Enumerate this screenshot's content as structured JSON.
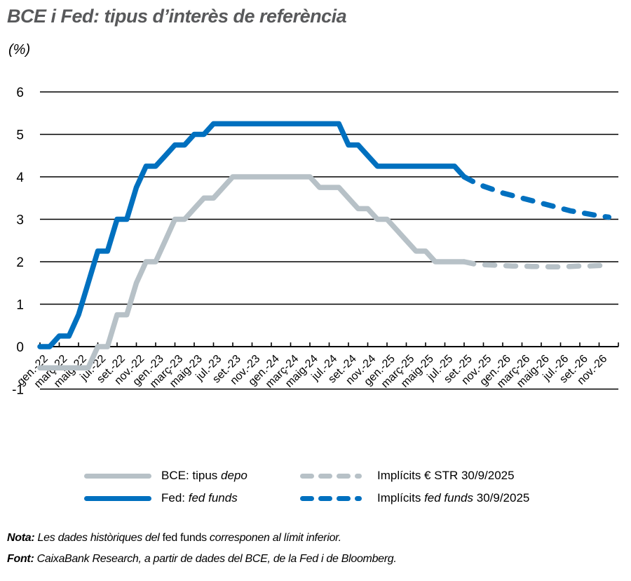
{
  "header": {
    "title": "BCE i Fed: tipus d’interès de referència",
    "unit": "(%)"
  },
  "colors": {
    "fed": "#0070bf",
    "ecb": "#b7c1c7",
    "grid": "#000000",
    "title": "#58595b"
  },
  "legend": [
    {
      "id": "ecb",
      "label_prefix": "BCE: tipus ",
      "label_italic": "depo",
      "label_suffix": "",
      "style": "solid",
      "color": "#b7c1c7"
    },
    {
      "id": "ecb_implied",
      "label_prefix": "Implícits € STR 30/9/2025",
      "label_italic": "",
      "label_suffix": "",
      "style": "dashed",
      "color": "#b7c1c7"
    },
    {
      "id": "fed",
      "label_prefix": "Fed: ",
      "label_italic": "fed funds",
      "label_suffix": "",
      "style": "solid",
      "color": "#0070bf"
    },
    {
      "id": "fed_implied",
      "label_prefix": "Implícits ",
      "label_italic": "fed funds",
      "label_suffix": " 30/9/2025",
      "style": "dashed",
      "color": "#0070bf"
    }
  ],
  "footnotes": {
    "note_label": "Nota:",
    "note_text_1": " Les dades històriques del ",
    "note_text_upright": "fed funds",
    "note_text_2": " corresponen al límit inferior.",
    "source_label": "Font:",
    "source_text": " CaixaBank Research, a partir de dades del BCE, de la Fed i de Bloomberg."
  },
  "chart_data": {
    "type": "line",
    "title": "BCE i Fed: tipus d’interès de referència",
    "ylabel": "(%)",
    "xlabel": "",
    "ylim": [
      -1,
      6
    ],
    "yticks": [
      -1,
      0,
      1,
      2,
      3,
      4,
      5,
      6
    ],
    "grid": "horizontal",
    "legend_position": "bottom",
    "x_tick_labels": [
      "gen.-22",
      "març-22",
      "maig-22",
      "jul.-22",
      "set.-22",
      "nov.-22",
      "gen.-23",
      "març-23",
      "maig-23",
      "jul.-23",
      "set.-23",
      "nov.-23",
      "gen.-24",
      "març-24",
      "maig-24",
      "jul.-24",
      "set.-24",
      "nov.-24",
      "gen.-25",
      "març-25",
      "maig-25",
      "jul.-25",
      "set.-25",
      "nov.-25",
      "gen.-26",
      "març-26",
      "maig-26",
      "jul.-26",
      "set.-26",
      "nov.-26"
    ],
    "x": [
      "2022-01",
      "2022-02",
      "2022-03",
      "2022-04",
      "2022-05",
      "2022-06",
      "2022-07",
      "2022-08",
      "2022-09",
      "2022-10",
      "2022-11",
      "2022-12",
      "2023-01",
      "2023-02",
      "2023-03",
      "2023-04",
      "2023-05",
      "2023-06",
      "2023-07",
      "2023-08",
      "2023-09",
      "2023-10",
      "2023-11",
      "2023-12",
      "2024-01",
      "2024-02",
      "2024-03",
      "2024-04",
      "2024-05",
      "2024-06",
      "2024-07",
      "2024-08",
      "2024-09",
      "2024-10",
      "2024-11",
      "2024-12",
      "2025-01",
      "2025-02",
      "2025-03",
      "2025-04",
      "2025-05",
      "2025-06",
      "2025-07",
      "2025-08",
      "2025-09",
      "2025-10",
      "2025-11",
      "2025-12",
      "2026-01",
      "2026-02",
      "2026-03",
      "2026-04",
      "2026-05",
      "2026-06",
      "2026-07",
      "2026-08",
      "2026-09",
      "2026-10",
      "2026-11",
      "2026-12"
    ],
    "series": [
      {
        "name": "BCE: tipus depo",
        "style": "solid",
        "color": "#b7c1c7",
        "values": [
          -0.5,
          -0.5,
          -0.5,
          -0.5,
          -0.5,
          -0.5,
          0,
          0,
          0.75,
          0.75,
          1.5,
          2.0,
          2.0,
          2.5,
          3.0,
          3.0,
          3.25,
          3.5,
          3.5,
          3.75,
          4.0,
          4.0,
          4.0,
          4.0,
          4.0,
          4.0,
          4.0,
          4.0,
          4.0,
          3.75,
          3.75,
          3.75,
          3.5,
          3.25,
          3.25,
          3.0,
          3.0,
          2.75,
          2.5,
          2.25,
          2.25,
          2.0,
          2.0,
          2.0,
          2.0,
          null,
          null,
          null,
          null,
          null,
          null,
          null,
          null,
          null,
          null,
          null,
          null,
          null,
          null,
          null
        ]
      },
      {
        "name": "Implícits € STR 30/9/2025",
        "style": "dashed",
        "color": "#b7c1c7",
        "values": [
          null,
          null,
          null,
          null,
          null,
          null,
          null,
          null,
          null,
          null,
          null,
          null,
          null,
          null,
          null,
          null,
          null,
          null,
          null,
          null,
          null,
          null,
          null,
          null,
          null,
          null,
          null,
          null,
          null,
          null,
          null,
          null,
          null,
          null,
          null,
          null,
          null,
          null,
          null,
          null,
          null,
          null,
          null,
          null,
          2.0,
          1.95,
          1.93,
          1.92,
          1.91,
          1.9,
          1.9,
          1.89,
          1.89,
          1.88,
          1.88,
          1.89,
          1.9,
          1.9,
          1.91,
          1.91
        ]
      },
      {
        "name": "Fed: fed funds",
        "style": "solid",
        "color": "#0070bf",
        "values": [
          0,
          0,
          0.25,
          0.25,
          0.75,
          1.5,
          2.25,
          2.25,
          3.0,
          3.0,
          3.75,
          4.25,
          4.25,
          4.5,
          4.75,
          4.75,
          5.0,
          5.0,
          5.25,
          5.25,
          5.25,
          5.25,
          5.25,
          5.25,
          5.25,
          5.25,
          5.25,
          5.25,
          5.25,
          5.25,
          5.25,
          5.25,
          4.75,
          4.75,
          4.5,
          4.25,
          4.25,
          4.25,
          4.25,
          4.25,
          4.25,
          4.25,
          4.25,
          4.25,
          4.0,
          null,
          null,
          null,
          null,
          null,
          null,
          null,
          null,
          null,
          null,
          null,
          null,
          null,
          null,
          null
        ]
      },
      {
        "name": "Implícits fed funds 30/9/2025",
        "style": "dashed",
        "color": "#0070bf",
        "values": [
          null,
          null,
          null,
          null,
          null,
          null,
          null,
          null,
          null,
          null,
          null,
          null,
          null,
          null,
          null,
          null,
          null,
          null,
          null,
          null,
          null,
          null,
          null,
          null,
          null,
          null,
          null,
          null,
          null,
          null,
          null,
          null,
          null,
          null,
          null,
          null,
          null,
          null,
          null,
          null,
          null,
          null,
          null,
          null,
          4.0,
          3.88,
          3.78,
          3.7,
          3.62,
          3.56,
          3.5,
          3.44,
          3.38,
          3.32,
          3.26,
          3.2,
          3.16,
          3.12,
          3.08,
          3.05
        ]
      }
    ]
  }
}
